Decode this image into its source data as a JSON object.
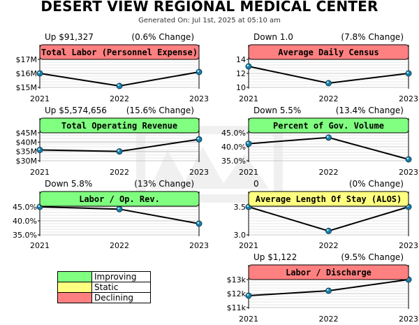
{
  "header": {
    "title": "DESERT VIEW REGIONAL MEDICAL CENTER",
    "subtitle": "Generated On: Jul 1st, 2025 at 05:10 am"
  },
  "colors": {
    "improving": "#80ff80",
    "static": "#ffff80",
    "declining": "#ff8080",
    "line": "#000000",
    "marker": "#1a7fa8"
  },
  "legend": [
    {
      "label": "Improving",
      "color": "#80ff80"
    },
    {
      "label": "Static",
      "color": "#ffff80"
    },
    {
      "label": "Declining",
      "color": "#ff8080"
    }
  ],
  "chart_data": [
    {
      "type": "line",
      "title": "Total Labor (Personnel Expense)",
      "status": "declining",
      "summary_left": "Up $91,327",
      "summary_right": "(0.6% Change)",
      "categories": [
        "2021",
        "2022",
        "2023"
      ],
      "values": [
        16.0,
        15.1,
        16.1
      ],
      "ylim": [
        15,
        17
      ],
      "yticks": [
        15,
        16,
        17
      ],
      "ytick_labels": [
        "$15M",
        "$16M",
        "$17M"
      ],
      "grid": true
    },
    {
      "type": "line",
      "title": "Average Daily Census",
      "status": "declining",
      "summary_left": "Down 1.0",
      "summary_right": "(7.8% Change)",
      "categories": [
        "2021",
        "2022",
        "2023"
      ],
      "values": [
        13.0,
        10.6,
        12.0
      ],
      "ylim": [
        10,
        14
      ],
      "yticks": [
        10,
        12,
        14
      ],
      "ytick_labels": [
        "10",
        "12",
        "14"
      ],
      "grid": true
    },
    {
      "type": "line",
      "title": "Total Operating Revenue",
      "status": "improving",
      "summary_left": "Up $5,574,656",
      "summary_right": "(15.6% Change)",
      "categories": [
        "2021",
        "2022",
        "2023"
      ],
      "values": [
        35.8,
        35.0,
        41.5
      ],
      "ylim": [
        30,
        45
      ],
      "yticks": [
        30,
        35,
        40,
        45
      ],
      "ytick_labels": [
        "$30M",
        "$35M",
        "$40M",
        "$45M"
      ],
      "grid": true
    },
    {
      "type": "line",
      "title": "Percent of Gov. Volume",
      "status": "improving",
      "summary_left": "Down 5.5%",
      "summary_right": "(13.4% Change)",
      "categories": [
        "2021",
        "2022",
        "2023"
      ],
      "values": [
        41.1,
        43.3,
        35.5
      ],
      "ylim": [
        35,
        45
      ],
      "yticks": [
        35,
        40,
        45
      ],
      "ytick_labels": [
        "35.0%",
        "40.0%",
        "45.0%"
      ],
      "grid": true
    },
    {
      "type": "line",
      "title": "Labor / Op. Rev.",
      "status": "improving",
      "summary_left": "Down 5.8%",
      "summary_right": "(13% Change)",
      "categories": [
        "2021",
        "2022",
        "2023"
      ],
      "values": [
        45.0,
        44.2,
        39.0
      ],
      "ylim": [
        35,
        45
      ],
      "yticks": [
        35,
        40,
        45
      ],
      "ytick_labels": [
        "35.0%",
        "40.0%",
        "45.0%"
      ],
      "grid": true
    },
    {
      "type": "line",
      "title": "Average Length Of Stay (ALOS)",
      "status": "static",
      "summary_left": "0",
      "summary_right": "(0% Change)",
      "categories": [
        "2021",
        "2022",
        "2023"
      ],
      "values": [
        3.5,
        3.07,
        3.5
      ],
      "ylim": [
        3.0,
        3.5
      ],
      "yticks": [
        3.0,
        3.5
      ],
      "ytick_labels": [
        "3.0",
        "3.5"
      ],
      "grid": true
    },
    {
      "type": "line",
      "title": "Labor / Discharge",
      "status": "declining",
      "summary_left": "Up $1,122",
      "summary_right": "(9.5% Change)",
      "categories": [
        "2021",
        "2022",
        "2023"
      ],
      "values": [
        11.85,
        12.2,
        13.0
      ],
      "ylim": [
        11,
        13
      ],
      "yticks": [
        11,
        12,
        13
      ],
      "ytick_labels": [
        "$11k",
        "$12k",
        "$13k"
      ],
      "grid": true
    }
  ]
}
